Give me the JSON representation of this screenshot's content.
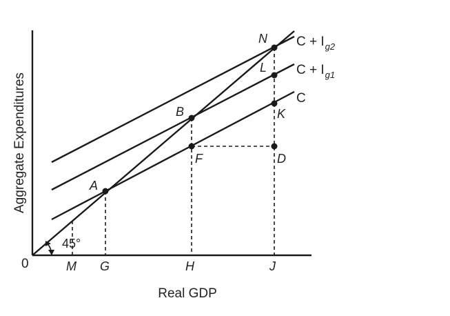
{
  "axes": {
    "y_label": "Aggregate Expenditures",
    "x_label": "Real GDP",
    "origin": "0",
    "ticks": [
      "M",
      "G",
      "H",
      "J"
    ]
  },
  "angle_label": "45°",
  "curves": [
    {
      "id": "c",
      "label": "C",
      "sub": ""
    },
    {
      "id": "cig1",
      "label": "C + I",
      "sub": "g1"
    },
    {
      "id": "cig2",
      "label": "C + I",
      "sub": "g2"
    }
  ],
  "points": [
    "A",
    "B",
    "F",
    "D",
    "K",
    "L",
    "N"
  ]
}
